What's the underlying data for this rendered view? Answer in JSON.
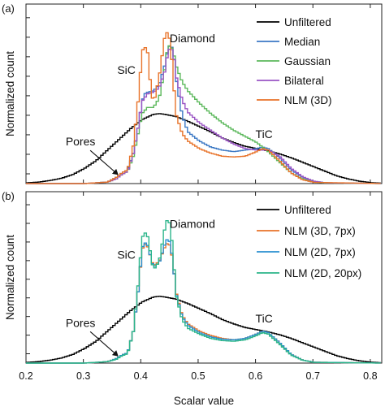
{
  "chart_data": [
    {
      "panel": "(a)",
      "type": "line",
      "ylabel": "Normalized count",
      "xlim": [
        0.2,
        0.82
      ],
      "annotations": [
        {
          "text": "Diamond",
          "x": 0.49,
          "y": 0.93
        },
        {
          "text": "SiC",
          "x": 0.375,
          "y": 0.72
        },
        {
          "text": "TiC",
          "x": 0.615,
          "y": 0.3
        },
        {
          "text": "Pores",
          "x": 0.295,
          "y": 0.25,
          "arrow_to": [
            0.36,
            0.06
          ]
        }
      ],
      "legend_position": "top-right",
      "series": [
        {
          "name": "Unfiltered",
          "color": "#000000",
          "x": [
            0.2,
            0.22,
            0.24,
            0.26,
            0.28,
            0.3,
            0.32,
            0.34,
            0.36,
            0.38,
            0.4,
            0.42,
            0.43,
            0.44,
            0.46,
            0.48,
            0.5,
            0.52,
            0.54,
            0.56,
            0.58,
            0.6,
            0.62,
            0.64,
            0.66,
            0.68,
            0.7,
            0.72,
            0.74,
            0.76,
            0.78,
            0.8,
            0.82
          ],
          "y": [
            0.005,
            0.01,
            0.02,
            0.035,
            0.06,
            0.1,
            0.15,
            0.22,
            0.29,
            0.36,
            0.42,
            0.455,
            0.46,
            0.455,
            0.44,
            0.41,
            0.375,
            0.34,
            0.3,
            0.27,
            0.245,
            0.23,
            0.215,
            0.195,
            0.17,
            0.14,
            0.11,
            0.08,
            0.05,
            0.03,
            0.015,
            0.006,
            0.002
          ]
        },
        {
          "name": "Median",
          "color": "#3b78c4",
          "x": [
            0.2,
            0.3,
            0.34,
            0.355,
            0.365,
            0.375,
            0.385,
            0.395,
            0.4,
            0.405,
            0.41,
            0.42,
            0.43,
            0.44,
            0.445,
            0.45,
            0.455,
            0.46,
            0.47,
            0.48,
            0.5,
            0.52,
            0.54,
            0.56,
            0.58,
            0.6,
            0.61,
            0.62,
            0.64,
            0.66,
            0.68,
            0.7,
            0.72,
            0.82
          ],
          "y": [
            0.0,
            0.0,
            0.01,
            0.04,
            0.07,
            0.09,
            0.2,
            0.4,
            0.54,
            0.59,
            0.6,
            0.61,
            0.65,
            0.78,
            0.88,
            0.92,
            0.86,
            0.68,
            0.45,
            0.34,
            0.28,
            0.24,
            0.22,
            0.21,
            0.22,
            0.23,
            0.24,
            0.23,
            0.17,
            0.09,
            0.04,
            0.015,
            0.005,
            0.0
          ]
        },
        {
          "name": "Gaussian",
          "color": "#5cb85c",
          "x": [
            0.2,
            0.3,
            0.34,
            0.355,
            0.365,
            0.375,
            0.385,
            0.395,
            0.4,
            0.41,
            0.42,
            0.43,
            0.44,
            0.445,
            0.45,
            0.455,
            0.46,
            0.47,
            0.48,
            0.5,
            0.52,
            0.54,
            0.56,
            0.58,
            0.6,
            0.61,
            0.62,
            0.64,
            0.66,
            0.68,
            0.7,
            0.72,
            0.82
          ],
          "y": [
            0.0,
            0.0,
            0.01,
            0.03,
            0.06,
            0.08,
            0.18,
            0.36,
            0.46,
            0.5,
            0.5,
            0.56,
            0.76,
            0.9,
            0.91,
            0.86,
            0.77,
            0.67,
            0.61,
            0.53,
            0.46,
            0.4,
            0.35,
            0.31,
            0.27,
            0.24,
            0.21,
            0.14,
            0.07,
            0.03,
            0.01,
            0.004,
            0.0
          ]
        },
        {
          "name": "Bilateral",
          "color": "#9a54c4",
          "x": [
            0.2,
            0.3,
            0.34,
            0.355,
            0.365,
            0.375,
            0.385,
            0.395,
            0.4,
            0.41,
            0.42,
            0.43,
            0.44,
            0.445,
            0.45,
            0.455,
            0.46,
            0.47,
            0.48,
            0.5,
            0.52,
            0.54,
            0.56,
            0.58,
            0.6,
            0.61,
            0.62,
            0.64,
            0.66,
            0.68,
            0.7,
            0.72,
            0.82
          ],
          "y": [
            0.0,
            0.0,
            0.01,
            0.03,
            0.06,
            0.08,
            0.2,
            0.4,
            0.54,
            0.59,
            0.6,
            0.63,
            0.74,
            0.86,
            0.9,
            0.85,
            0.7,
            0.55,
            0.47,
            0.4,
            0.35,
            0.3,
            0.26,
            0.23,
            0.22,
            0.22,
            0.22,
            0.18,
            0.1,
            0.045,
            0.015,
            0.005,
            0.0
          ]
        },
        {
          "name": "NLM (3D)",
          "color": "#e8732a",
          "x": [
            0.2,
            0.3,
            0.34,
            0.355,
            0.365,
            0.375,
            0.385,
            0.395,
            0.4,
            0.405,
            0.41,
            0.415,
            0.42,
            0.43,
            0.44,
            0.445,
            0.45,
            0.455,
            0.46,
            0.47,
            0.48,
            0.5,
            0.52,
            0.54,
            0.56,
            0.58,
            0.6,
            0.61,
            0.62,
            0.64,
            0.66,
            0.68,
            0.7,
            0.82
          ],
          "y": [
            0.0,
            0.0,
            0.01,
            0.04,
            0.07,
            0.09,
            0.25,
            0.6,
            0.87,
            0.9,
            0.86,
            0.65,
            0.52,
            0.7,
            0.97,
            1.0,
            0.92,
            0.66,
            0.45,
            0.33,
            0.28,
            0.23,
            0.2,
            0.18,
            0.175,
            0.18,
            0.21,
            0.23,
            0.22,
            0.15,
            0.07,
            0.025,
            0.008,
            0.0
          ]
        }
      ]
    },
    {
      "panel": "(b)",
      "type": "line",
      "xlabel": "Scalar value",
      "ylabel": "Normalized count",
      "xlim": [
        0.2,
        0.82
      ],
      "xticks": [
        "0.2",
        "0.3",
        "0.4",
        "0.5",
        "0.6",
        "0.7",
        "0.8"
      ],
      "annotations": [
        {
          "text": "Diamond",
          "x": 0.49,
          "y": 0.93
        },
        {
          "text": "SiC",
          "x": 0.375,
          "y": 0.72
        },
        {
          "text": "TiC",
          "x": 0.615,
          "y": 0.28
        },
        {
          "text": "Pores",
          "x": 0.295,
          "y": 0.25,
          "arrow_to": [
            0.36,
            0.05
          ]
        }
      ],
      "legend_position": "top-right",
      "series": [
        {
          "name": "Unfiltered",
          "color": "#000000",
          "x": [
            0.2,
            0.22,
            0.24,
            0.26,
            0.28,
            0.3,
            0.32,
            0.34,
            0.36,
            0.38,
            0.4,
            0.42,
            0.43,
            0.44,
            0.46,
            0.48,
            0.5,
            0.52,
            0.54,
            0.56,
            0.58,
            0.6,
            0.62,
            0.64,
            0.66,
            0.68,
            0.7,
            0.72,
            0.74,
            0.76,
            0.78,
            0.8,
            0.82
          ],
          "y": [
            0.005,
            0.01,
            0.02,
            0.035,
            0.06,
            0.1,
            0.15,
            0.22,
            0.29,
            0.36,
            0.42,
            0.455,
            0.46,
            0.455,
            0.44,
            0.41,
            0.375,
            0.34,
            0.3,
            0.27,
            0.245,
            0.23,
            0.215,
            0.195,
            0.17,
            0.14,
            0.11,
            0.08,
            0.05,
            0.03,
            0.015,
            0.006,
            0.002
          ]
        },
        {
          "name": "NLM (3D, 7px)",
          "color": "#e8732a",
          "x": [
            0.2,
            0.3,
            0.34,
            0.355,
            0.365,
            0.375,
            0.385,
            0.395,
            0.4,
            0.405,
            0.41,
            0.42,
            0.43,
            0.44,
            0.445,
            0.45,
            0.455,
            0.46,
            0.47,
            0.48,
            0.5,
            0.52,
            0.54,
            0.56,
            0.58,
            0.6,
            0.61,
            0.62,
            0.64,
            0.66,
            0.68,
            0.7,
            0.82
          ],
          "y": [
            0.0,
            0.0,
            0.01,
            0.03,
            0.055,
            0.07,
            0.22,
            0.55,
            0.78,
            0.82,
            0.8,
            0.67,
            0.7,
            0.8,
            0.83,
            0.8,
            0.66,
            0.48,
            0.33,
            0.27,
            0.22,
            0.19,
            0.17,
            0.16,
            0.17,
            0.2,
            0.22,
            0.21,
            0.14,
            0.06,
            0.02,
            0.006,
            0.0
          ]
        },
        {
          "name": "NLM (2D, 7px)",
          "color": "#2a8fd0",
          "x": [
            0.2,
            0.3,
            0.34,
            0.355,
            0.365,
            0.375,
            0.385,
            0.395,
            0.4,
            0.405,
            0.41,
            0.42,
            0.43,
            0.44,
            0.445,
            0.45,
            0.455,
            0.46,
            0.47,
            0.48,
            0.5,
            0.52,
            0.54,
            0.56,
            0.58,
            0.6,
            0.61,
            0.62,
            0.64,
            0.66,
            0.68,
            0.7,
            0.82
          ],
          "y": [
            0.0,
            0.0,
            0.01,
            0.03,
            0.055,
            0.07,
            0.22,
            0.55,
            0.79,
            0.83,
            0.81,
            0.66,
            0.69,
            0.82,
            0.86,
            0.82,
            0.66,
            0.47,
            0.32,
            0.26,
            0.21,
            0.18,
            0.165,
            0.16,
            0.17,
            0.2,
            0.22,
            0.21,
            0.14,
            0.06,
            0.02,
            0.006,
            0.0
          ]
        },
        {
          "name": "NLM (2D, 20px)",
          "color": "#2bb58a",
          "x": [
            0.2,
            0.3,
            0.34,
            0.355,
            0.365,
            0.375,
            0.385,
            0.395,
            0.4,
            0.405,
            0.41,
            0.42,
            0.43,
            0.44,
            0.445,
            0.45,
            0.455,
            0.46,
            0.47,
            0.48,
            0.5,
            0.52,
            0.54,
            0.56,
            0.58,
            0.6,
            0.61,
            0.62,
            0.64,
            0.66,
            0.68,
            0.7,
            0.82
          ],
          "y": [
            0.0,
            0.0,
            0.01,
            0.025,
            0.05,
            0.065,
            0.22,
            0.6,
            0.86,
            0.9,
            0.87,
            0.64,
            0.7,
            0.93,
            1.0,
            0.94,
            0.7,
            0.46,
            0.3,
            0.24,
            0.2,
            0.17,
            0.155,
            0.15,
            0.16,
            0.19,
            0.21,
            0.2,
            0.13,
            0.055,
            0.02,
            0.005,
            0.0
          ]
        }
      ]
    }
  ]
}
